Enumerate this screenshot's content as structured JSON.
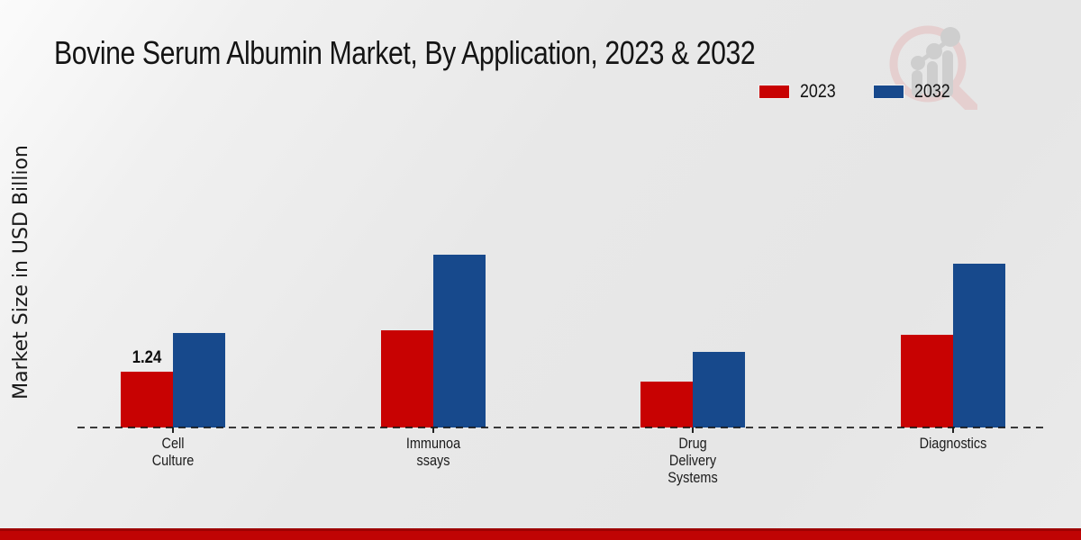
{
  "title": "Bovine Serum Albumin Market, By Application, 2023 & 2032",
  "y_axis_label": "Market Size in USD Billion",
  "legend": [
    {
      "label": "2023",
      "color": "#c80202"
    },
    {
      "label": "2032",
      "color": "#17498c"
    }
  ],
  "watermark_icon": "magnifier-bar-chart-logo",
  "colors": {
    "bar_2023": "#c80202",
    "bar_2032": "#17498c",
    "footer_red": "#c00404",
    "footer_red_dark": "#9d0202",
    "watermark_ring_pink": "#e5cfcf",
    "watermark_gray": "#cecece",
    "background_gray": "#e8e8e8",
    "text_dark": "#141414"
  },
  "chart_data": {
    "type": "bar",
    "title": "Bovine Serum Albumin Market, By Application, 2023 & 2032",
    "xlabel": "",
    "ylabel": "Market Size in USD Billion",
    "categories": [
      "Cell Culture",
      "Immunoassays",
      "Drug Delivery Systems",
      "Diagnostics"
    ],
    "category_label_lines": [
      [
        "Cell",
        "Culture"
      ],
      [
        "Immunoa",
        "ssays"
      ],
      [
        "Drug",
        "Delivery",
        "Systems"
      ],
      [
        "Diagnostics"
      ]
    ],
    "series": [
      {
        "name": "2023",
        "color": "#c80202",
        "values": [
          1.24,
          2.16,
          1.02,
          2.06
        ]
      },
      {
        "name": "2032",
        "color": "#17498c",
        "values": [
          2.1,
          3.84,
          1.69,
          3.64
        ]
      }
    ],
    "data_labels": [
      {
        "series_index": 0,
        "category_index": 0,
        "text": "1.24"
      }
    ],
    "units": "USD Billion",
    "ylim": [
      0,
      4.2
    ],
    "grid": false,
    "y_axis_ticks_visible": false,
    "baseline_style": "dashed",
    "legend_position": "top-right"
  }
}
